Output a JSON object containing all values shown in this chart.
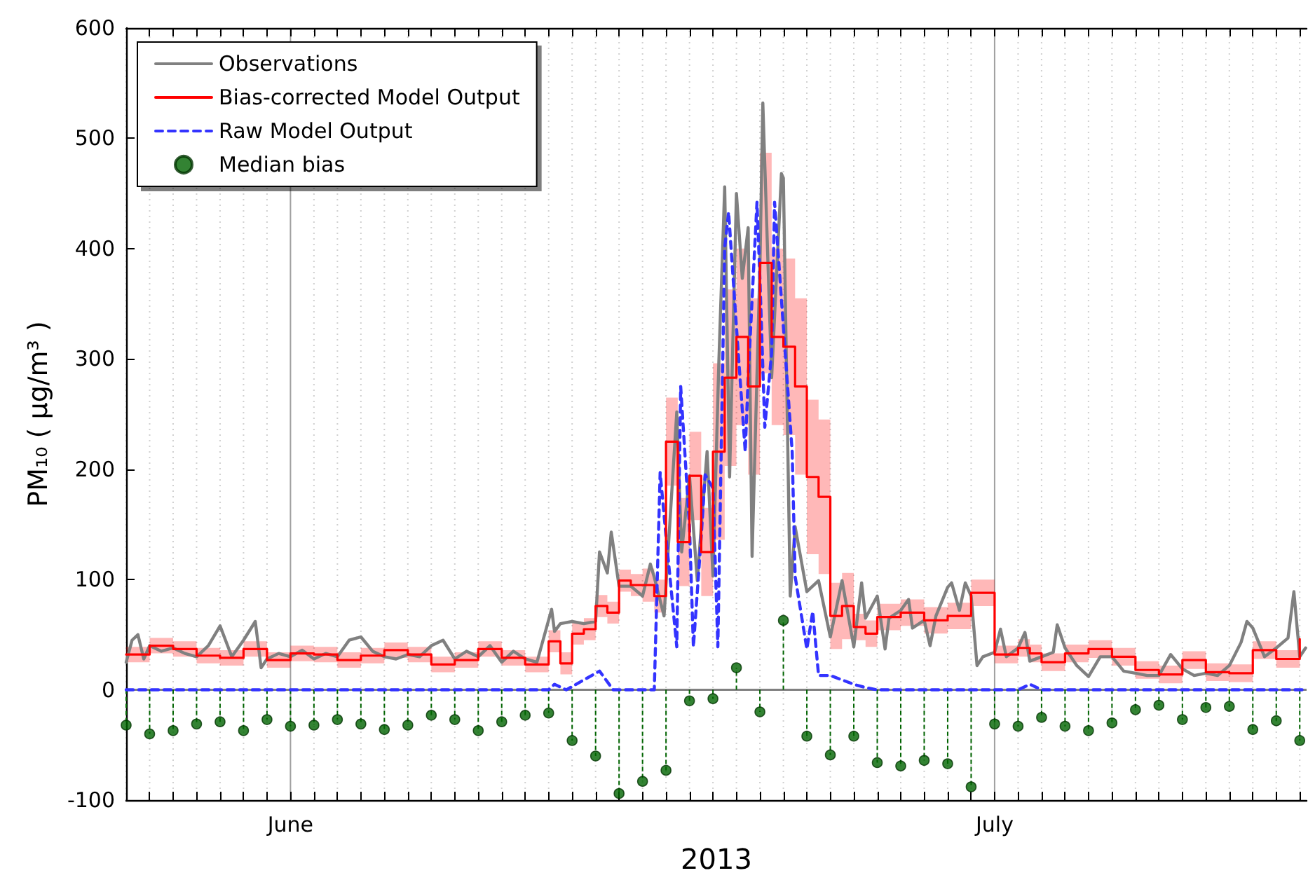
{
  "chart_data": {
    "type": "line",
    "xlabel": "2013",
    "ylabel": "PM₁₀ ( μg/m³ )",
    "legend": "top left",
    "grid": "x",
    "xlim": [
      "2013-05-25T00:00",
      "2013-07-14T07:00"
    ],
    "ylim": [
      -100,
      600
    ],
    "yticks": [
      -100,
      0,
      100,
      200,
      300,
      400,
      500,
      600
    ],
    "xticks": [
      {
        "value": "2013-05-25",
        "label": null
      },
      {
        "value": "2013-05-26",
        "label": null
      },
      {
        "value": "2013-05-27",
        "label": null
      },
      {
        "value": "2013-05-28",
        "label": null
      },
      {
        "value": "2013-05-29",
        "label": null
      },
      {
        "value": "2013-05-30",
        "label": null
      },
      {
        "value": "2013-05-31",
        "label": null
      },
      {
        "value": "2013-06-01",
        "label": "June"
      },
      {
        "value": "2013-06-02",
        "label": null
      },
      {
        "value": "2013-06-03",
        "label": null
      },
      {
        "value": "2013-06-04",
        "label": null
      },
      {
        "value": "2013-06-05",
        "label": null
      },
      {
        "value": "2013-06-06",
        "label": null
      },
      {
        "value": "2013-06-07",
        "label": null
      },
      {
        "value": "2013-06-08",
        "label": null
      },
      {
        "value": "2013-06-09",
        "label": null
      },
      {
        "value": "2013-06-10",
        "label": null
      },
      {
        "value": "2013-06-11",
        "label": null
      },
      {
        "value": "2013-06-12",
        "label": null
      },
      {
        "value": "2013-06-13",
        "label": null
      },
      {
        "value": "2013-06-14",
        "label": null
      },
      {
        "value": "2013-06-15",
        "label": null
      },
      {
        "value": "2013-06-16",
        "label": null
      },
      {
        "value": "2013-06-17",
        "label": null
      },
      {
        "value": "2013-06-18",
        "label": null
      },
      {
        "value": "2013-06-19",
        "label": null
      },
      {
        "value": "2013-06-20",
        "label": null
      },
      {
        "value": "2013-06-21",
        "label": null
      },
      {
        "value": "2013-06-22",
        "label": null
      },
      {
        "value": "2013-06-23",
        "label": null
      },
      {
        "value": "2013-06-24",
        "label": null
      },
      {
        "value": "2013-06-25",
        "label": null
      },
      {
        "value": "2013-06-26",
        "label": null
      },
      {
        "value": "2013-06-27",
        "label": null
      },
      {
        "value": "2013-06-28",
        "label": null
      },
      {
        "value": "2013-06-29",
        "label": null
      },
      {
        "value": "2013-06-30",
        "label": null
      },
      {
        "value": "2013-07-01",
        "label": "July"
      },
      {
        "value": "2013-07-02",
        "label": null
      },
      {
        "value": "2013-07-03",
        "label": null
      },
      {
        "value": "2013-07-04",
        "label": null
      },
      {
        "value": "2013-07-05",
        "label": null
      },
      {
        "value": "2013-07-06",
        "label": null
      },
      {
        "value": "2013-07-07",
        "label": null
      },
      {
        "value": "2013-07-08",
        "label": null
      },
      {
        "value": "2013-07-09",
        "label": null
      },
      {
        "value": "2013-07-10",
        "label": null
      },
      {
        "value": "2013-07-11",
        "label": null
      },
      {
        "value": "2013-07-12",
        "label": null
      },
      {
        "value": "2013-07-13",
        "label": null
      },
      {
        "value": "2013-07-14",
        "label": null
      }
    ],
    "x": [
      "2013-05-25T00:00",
      "2013-05-25T12:00",
      "2013-05-26T00:00",
      "2013-05-26T12:00",
      "2013-05-27T00:00",
      "2013-05-27T12:00",
      "2013-05-28T00:00",
      "2013-05-28T12:00",
      "2013-05-29T00:00",
      "2013-05-29T12:00",
      "2013-05-30T00:00",
      "2013-05-30T12:00",
      "2013-05-31T00:00",
      "2013-05-31T12:00",
      "2013-06-01T00:00",
      "2013-06-01T12:00",
      "2013-06-02T00:00",
      "2013-06-02T12:00",
      "2013-06-03T00:00",
      "2013-06-03T12:00",
      "2013-06-04T00:00",
      "2013-06-04T12:00",
      "2013-06-05T00:00",
      "2013-06-05T12:00",
      "2013-06-06T00:00",
      "2013-06-06T12:00",
      "2013-06-07T00:00",
      "2013-06-07T12:00",
      "2013-06-08T00:00",
      "2013-06-08T12:00",
      "2013-06-09T00:00",
      "2013-06-09T12:00",
      "2013-06-10T00:00",
      "2013-06-10T12:00",
      "2013-06-11T00:00",
      "2013-06-11T12:00",
      "2013-06-12T00:00",
      "2013-06-12T12:00",
      "2013-06-13T00:00",
      "2013-06-13T12:00",
      "2013-06-14T00:00",
      "2013-06-14T12:00",
      "2013-06-15T00:00",
      "2013-06-15T12:00",
      "2013-06-16T00:00",
      "2013-06-16T12:00",
      "2013-06-17T00:00",
      "2013-06-17T12:00",
      "2013-06-18T00:00",
      "2013-06-18T12:00",
      "2013-06-19T00:00",
      "2013-06-19T12:00",
      "2013-06-20T00:00",
      "2013-06-20T12:00",
      "2013-06-21T00:00",
      "2013-06-21T12:00",
      "2013-06-22T00:00",
      "2013-06-22T12:00",
      "2013-06-23T00:00",
      "2013-06-23T12:00",
      "2013-06-24T00:00",
      "2013-06-24T12:00",
      "2013-06-25T00:00",
      "2013-06-25T12:00",
      "2013-06-26T00:00",
      "2013-06-26T12:00",
      "2013-06-27T00:00",
      "2013-06-27T12:00",
      "2013-06-28T00:00",
      "2013-06-28T12:00",
      "2013-06-29T00:00",
      "2013-06-29T12:00",
      "2013-06-30T00:00",
      "2013-06-30T12:00",
      "2013-07-01T00:00",
      "2013-07-01T12:00",
      "2013-07-02T00:00",
      "2013-07-02T12:00",
      "2013-07-03T00:00",
      "2013-07-03T12:00",
      "2013-07-04T00:00",
      "2013-07-04T12:00",
      "2013-07-05T00:00",
      "2013-07-05T12:00",
      "2013-07-06T00:00",
      "2013-07-06T12:00",
      "2013-07-07T00:00",
      "2013-07-07T12:00",
      "2013-07-08T00:00",
      "2013-07-08T12:00",
      "2013-07-09T00:00",
      "2013-07-09T12:00",
      "2013-07-10T00:00",
      "2013-07-10T12:00",
      "2013-07-11T00:00",
      "2013-07-11T12:00",
      "2013-07-12T00:00",
      "2013-07-12T12:00",
      "2013-07-13T00:00",
      "2013-07-13T12:00",
      "2013-07-14T00:00"
    ],
    "series": [
      {
        "name": "Observations",
        "color": "#808080",
        "x": [
          "2013-05-25T00:00",
          "2013-05-25T06:00",
          "2013-05-25T12:00",
          "2013-05-25T18:00",
          "2013-05-26T00:00",
          "2013-05-26T12:00",
          "2013-05-27T00:00",
          "2013-05-27T12:00",
          "2013-05-28T00:00",
          "2013-05-28T12:00",
          "2013-05-29T00:00",
          "2013-05-29T12:00",
          "2013-05-30T00:00",
          "2013-05-30T12:00",
          "2013-05-30T18:00",
          "2013-05-31T00:00",
          "2013-05-31T12:00",
          "2013-06-01T00:00",
          "2013-06-01T12:00",
          "2013-06-02T00:00",
          "2013-06-02T12:00",
          "2013-06-03T00:00",
          "2013-06-03T12:00",
          "2013-06-04T00:00",
          "2013-06-04T12:00",
          "2013-06-05T00:00",
          "2013-06-05T12:00",
          "2013-06-06T00:00",
          "2013-06-06T12:00",
          "2013-06-07T00:00",
          "2013-06-07T12:00",
          "2013-06-08T00:00",
          "2013-06-08T12:00",
          "2013-06-09T00:00",
          "2013-06-09T12:00",
          "2013-06-10T00:00",
          "2013-06-10T12:00",
          "2013-06-11T00:00",
          "2013-06-11T12:00",
          "2013-06-12T03:00",
          "2013-06-12T06:00",
          "2013-06-12T12:00",
          "2013-06-13T00:00",
          "2013-06-13T12:00",
          "2013-06-14T00:00",
          "2013-06-14T04:00",
          "2013-06-14T12:00",
          "2013-06-14T16:00",
          "2013-06-15T00:00",
          "2013-06-15T12:00",
          "2013-06-16T00:00",
          "2013-06-16T08:00",
          "2013-06-16T12:00",
          "2013-06-16T22:00",
          "2013-06-17T11:00",
          "2013-06-17T16:00",
          "2013-06-18T00:00",
          "2013-06-18T08:00",
          "2013-06-18T12:00",
          "2013-06-18T18:00",
          "2013-06-19T00:00",
          "2013-06-19T06:00",
          "2013-06-19T12:00",
          "2013-06-19T17:00",
          "2013-06-20T00:00",
          "2013-06-20T06:00",
          "2013-06-20T12:00",
          "2013-06-20T16:00",
          "2013-06-21T00:00",
          "2013-06-21T03:00",
          "2013-06-21T12:00",
          "2013-06-21T22:00",
          "2013-06-22T00:00",
          "2013-06-22T07:00",
          "2013-06-22T12:00",
          "2013-06-23T00:00",
          "2013-06-23T12:00",
          "2013-06-24T00:00",
          "2013-06-24T12:00",
          "2013-06-25T00:00",
          "2013-06-25T08:00",
          "2013-06-25T12:00",
          "2013-06-26T00:00",
          "2013-06-26T08:00",
          "2013-06-26T12:00",
          "2013-06-27T00:00",
          "2013-06-27T08:00",
          "2013-06-27T12:00",
          "2013-06-28T00:00",
          "2013-06-28T06:00",
          "2013-06-28T12:00",
          "2013-06-29T00:00",
          "2013-06-29T04:00",
          "2013-06-29T12:00",
          "2013-06-29T18:00",
          "2013-06-30T00:00",
          "2013-06-30T06:00",
          "2013-06-30T12:00",
          "2013-07-01T00:00",
          "2013-07-01T06:00",
          "2013-07-01T12:00",
          "2013-07-02T00:00",
          "2013-07-02T07:00",
          "2013-07-02T12:00",
          "2013-07-03T00:00",
          "2013-07-03T12:00",
          "2013-07-03T16:00",
          "2013-07-04T00:00",
          "2013-07-04T12:00",
          "2013-07-05T00:00",
          "2013-07-05T12:00",
          "2013-07-06T00:00",
          "2013-07-06T12:00",
          "2013-07-07T00:00",
          "2013-07-07T12:00",
          "2013-07-08T00:00",
          "2013-07-08T12:00",
          "2013-07-09T00:00",
          "2013-07-09T12:00",
          "2013-07-10T00:00",
          "2013-07-10T12:00",
          "2013-07-11T00:00",
          "2013-07-11T12:00",
          "2013-07-11T18:00",
          "2013-07-12T00:00",
          "2013-07-12T12:00",
          "2013-07-13T00:00",
          "2013-07-13T12:00",
          "2013-07-13T18:00",
          "2013-07-14T00:00",
          "2013-07-14T06:00"
        ],
        "values": [
          25,
          45,
          50,
          28,
          40,
          35,
          38,
          33,
          30,
          40,
          58,
          30,
          45,
          62,
          20,
          28,
          33,
          30,
          36,
          28,
          33,
          30,
          45,
          48,
          35,
          30,
          28,
          32,
          30,
          40,
          45,
          28,
          35,
          30,
          40,
          25,
          35,
          28,
          25,
          73,
          53,
          60,
          62,
          60,
          62,
          125,
          106,
          143,
          94,
          94,
          85,
          114,
          102,
          67,
          252,
          125,
          194,
          99,
          148,
          216,
          103,
          297,
          456,
          193,
          450,
          373,
          419,
          121,
          383,
          532,
          283,
          468,
          464,
          85,
          148,
          89,
          99,
          48,
          99,
          39,
          97,
          65,
          85,
          37,
          65,
          72,
          82,
          56,
          63,
          40,
          67,
          93,
          97,
          72,
          97,
          85,
          22,
          30,
          34,
          55,
          30,
          38,
          52,
          26,
          30,
          34,
          59,
          38,
          22,
          12,
          30,
          30,
          17,
          15,
          13,
          13,
          32,
          19,
          13,
          15,
          13,
          22,
          43,
          62,
          56,
          30,
          38,
          47,
          89,
          30,
          38
        ]
      },
      {
        "name": "Bias-corrected Model Output",
        "type": "step",
        "color": "#ff0000",
        "values": [
          32,
          32,
          40,
          40,
          37,
          37,
          31,
          31,
          29,
          29,
          37,
          37,
          27,
          27,
          33,
          33,
          32,
          32,
          27,
          27,
          31,
          31,
          36,
          36,
          32,
          32,
          23,
          23,
          27,
          27,
          37,
          37,
          29,
          29,
          23,
          23,
          44,
          24,
          51,
          55,
          76,
          70,
          99,
          95,
          95,
          85,
          225,
          134,
          194,
          125,
          216,
          283,
          320,
          275,
          387,
          320,
          311,
          275,
          193,
          175,
          67,
          76,
          57,
          51,
          66,
          66,
          70,
          70,
          63,
          63,
          67,
          67,
          88,
          88,
          32,
          32,
          38,
          33,
          25,
          25,
          33,
          33,
          37,
          37,
          30,
          30,
          18,
          18,
          14,
          14,
          27,
          27,
          16,
          16,
          15,
          15,
          36,
          36,
          28,
          28,
          46
        ],
        "lower": [
          25,
          25,
          33,
          33,
          30,
          30,
          24,
          24,
          22,
          22,
          30,
          30,
          20,
          20,
          26,
          26,
          25,
          25,
          20,
          20,
          24,
          24,
          29,
          29,
          25,
          25,
          16,
          16,
          20,
          20,
          30,
          30,
          22,
          22,
          16,
          16,
          34,
          14,
          41,
          45,
          66,
          60,
          89,
          85,
          80,
          70,
          185,
          94,
          154,
          85,
          136,
          203,
          240,
          195,
          287,
          240,
          231,
          195,
          123,
          105,
          37,
          46,
          45,
          39,
          54,
          54,
          58,
          58,
          51,
          51,
          55,
          55,
          76,
          76,
          24,
          24,
          30,
          25,
          17,
          17,
          25,
          25,
          29,
          29,
          22,
          22,
          10,
          10,
          6,
          6,
          19,
          19,
          8,
          8,
          7,
          7,
          28,
          28,
          20,
          20,
          38
        ],
        "upper": [
          39,
          39,
          47,
          47,
          44,
          44,
          38,
          38,
          36,
          36,
          44,
          44,
          34,
          34,
          40,
          40,
          39,
          39,
          34,
          34,
          38,
          38,
          43,
          43,
          39,
          39,
          30,
          30,
          34,
          34,
          44,
          44,
          36,
          36,
          30,
          30,
          54,
          34,
          61,
          65,
          86,
          80,
          109,
          105,
          110,
          100,
          265,
          174,
          234,
          165,
          296,
          363,
          400,
          355,
          487,
          400,
          391,
          355,
          263,
          245,
          97,
          106,
          69,
          63,
          78,
          78,
          82,
          82,
          75,
          75,
          79,
          79,
          100,
          100,
          40,
          40,
          46,
          41,
          33,
          33,
          41,
          41,
          45,
          45,
          38,
          38,
          26,
          26,
          22,
          22,
          35,
          35,
          24,
          24,
          23,
          23,
          44,
          44,
          36,
          36,
          54
        ]
      },
      {
        "name": "Raw Model Output",
        "color": "#3333ff",
        "line_style": "dashed",
        "x": [
          "2013-05-25T00:00",
          "2013-06-12T00:00",
          "2013-06-12T06:00",
          "2013-06-12T18:00",
          "2013-06-14T04:00",
          "2013-06-14T18:00",
          "2013-06-16T12:00",
          "2013-06-16T18:00",
          "2013-06-17T00:00",
          "2013-06-17T11:00",
          "2013-06-17T15:00",
          "2013-06-18T00:00",
          "2013-06-18T04:00",
          "2013-06-18T12:00",
          "2013-06-18T16:00",
          "2013-06-19T00:00",
          "2013-06-19T05:00",
          "2013-06-19T12:00",
          "2013-06-19T16:00",
          "2013-06-20T00:00",
          "2013-06-20T09:00",
          "2013-06-20T12:00",
          "2013-06-20T21:00",
          "2013-06-21T00:00",
          "2013-06-21T05:00",
          "2013-06-21T12:00",
          "2013-06-21T15:00",
          "2013-06-22T00:00",
          "2013-06-22T09:00",
          "2013-06-22T12:00",
          "2013-06-23T00:00",
          "2013-06-23T06:00",
          "2013-06-23T12:00",
          "2013-06-24T00:00",
          "2013-06-24T12:00",
          "2013-06-25T00:00",
          "2013-06-25T12:00",
          "2013-06-26T00:00",
          "2013-07-02T00:00",
          "2013-07-02T12:00",
          "2013-07-03T00:00",
          "2013-07-14T06:00"
        ],
        "values": [
          0,
          0,
          5,
          0,
          17,
          0,
          0,
          197,
          139,
          39,
          275,
          148,
          39,
          139,
          195,
          183,
          39,
          401,
          433,
          329,
          216,
          283,
          442,
          373,
          238,
          306,
          442,
          329,
          216,
          103,
          37,
          71,
          13,
          13,
          9,
          5,
          2,
          0,
          0,
          5,
          0,
          0
        ]
      },
      {
        "name": "Median bias",
        "type": "lollipop",
        "color": "#006400",
        "marker": "circle",
        "line_style": "dashed",
        "x": [
          "2013-05-25",
          "2013-05-26",
          "2013-05-27",
          "2013-05-28",
          "2013-05-29",
          "2013-05-30",
          "2013-05-31",
          "2013-06-01",
          "2013-06-02",
          "2013-06-03",
          "2013-06-04",
          "2013-06-05",
          "2013-06-06",
          "2013-06-07",
          "2013-06-08",
          "2013-06-09",
          "2013-06-10",
          "2013-06-11",
          "2013-06-12",
          "2013-06-13",
          "2013-06-14",
          "2013-06-15",
          "2013-06-16",
          "2013-06-17",
          "2013-06-18",
          "2013-06-19",
          "2013-06-20",
          "2013-06-21",
          "2013-06-22",
          "2013-06-23",
          "2013-06-24",
          "2013-06-25",
          "2013-06-26",
          "2013-06-27",
          "2013-06-28",
          "2013-06-29",
          "2013-06-30",
          "2013-07-01",
          "2013-07-02",
          "2013-07-03",
          "2013-07-04",
          "2013-07-05",
          "2013-07-06",
          "2013-07-07",
          "2013-07-08",
          "2013-07-09",
          "2013-07-10",
          "2013-07-11",
          "2013-07-12",
          "2013-07-13",
          "2013-07-14"
        ],
        "values": [
          -32,
          -40,
          -37,
          -31,
          -29,
          -37,
          -27,
          -33,
          -32,
          -27,
          -31,
          -36,
          -32,
          -23,
          -27,
          -37,
          -29,
          -23,
          -21,
          -46,
          -60,
          -94,
          -83,
          -73,
          -10,
          -8,
          20,
          -20,
          63,
          -42,
          -59,
          -42,
          -66,
          -69,
          -64,
          -67,
          -88,
          -31,
          -33,
          -25,
          -33,
          -37,
          -30,
          -18,
          -14,
          -27,
          -16,
          -15,
          -36,
          -28,
          -46
        ]
      }
    ]
  }
}
